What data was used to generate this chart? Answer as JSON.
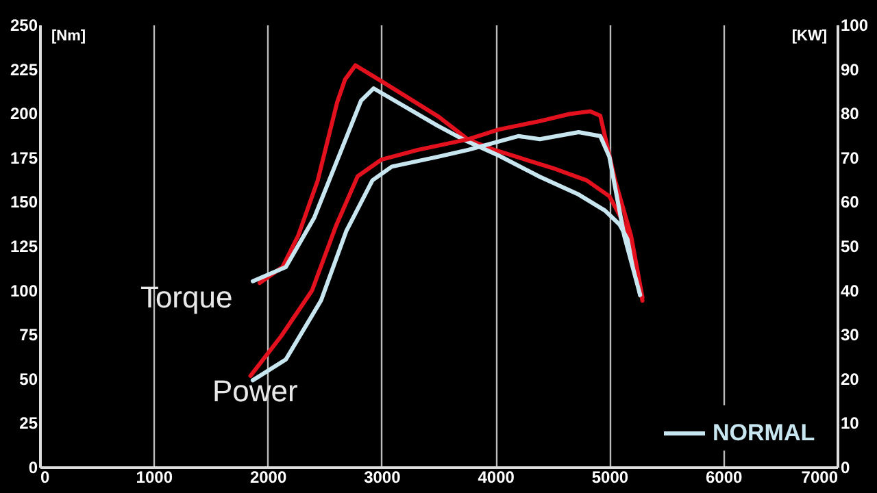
{
  "chart_data": {
    "type": "line",
    "xlabel": null,
    "ylabel": "[Nm]",
    "y2label": "[KW]",
    "xlim": [
      0,
      7000
    ],
    "xticks": [
      0,
      1000,
      2000,
      3000,
      4000,
      5000,
      6000,
      7000
    ],
    "ylim": [
      0,
      250
    ],
    "yticks": [
      0,
      25,
      50,
      75,
      100,
      125,
      150,
      175,
      200,
      225,
      250
    ],
    "y2lim": [
      0,
      100
    ],
    "y2ticks": [
      0,
      10,
      20,
      30,
      40,
      50,
      60,
      70,
      80,
      90,
      100
    ],
    "grid": "x",
    "legend": "bottom right",
    "marker": "none",
    "line_style": "solid",
    "annotations": [
      "Torque",
      "Power"
    ],
    "series": [
      {
        "color": "#e3101e",
        "x": [
          1930,
          2130,
          2270,
          2440,
          2610,
          2680,
          2770,
          3000,
          3500,
          3760,
          4000,
          4500,
          4800,
          5000,
          5100,
          5200,
          5290
        ],
        "values": [
          104,
          113,
          131,
          162,
          206,
          219,
          227,
          218,
          198,
          185,
          179,
          169,
          162,
          153,
          141,
          125,
          94
        ]
      },
      {
        "name": "NORMAL",
        "color": "#c8e6f0",
        "x": [
          1870,
          2160,
          2410,
          2640,
          2820,
          2930,
          3490,
          3720,
          4030,
          4390,
          4730,
          4960,
          5090,
          5190,
          5270
        ],
        "values": [
          105,
          113,
          141,
          178,
          207,
          214,
          193,
          185,
          176,
          164,
          154,
          145,
          137,
          125,
          97
        ]
      },
      {
        "axis": "y2",
        "color": "#e3101e",
        "x": [
          1850,
          2120,
          2390,
          2600,
          2790,
          3000,
          3320,
          3760,
          4030,
          4390,
          4650,
          4830,
          4920,
          5050,
          5190,
          5290
        ],
        "values": [
          20.6,
          29.6,
          39.9,
          54.5,
          65.7,
          69.5,
          71.7,
          74.1,
          76.3,
          78.2,
          79.8,
          80.4,
          79.4,
          64.8,
          52.3,
          38.3
        ]
      },
      {
        "axis": "y2",
        "color": "#c8e6f0",
        "x": [
          1870,
          2160,
          2470,
          2690,
          2920,
          3090,
          3490,
          3760,
          4200,
          4390,
          4730,
          4920,
          5000,
          5130,
          5270
        ],
        "values": [
          19.6,
          24.3,
          37.7,
          53.3,
          64.8,
          67.9,
          70.1,
          71.7,
          74.8,
          74.1,
          75.7,
          74.8,
          70.1,
          52.3,
          38.9
        ]
      }
    ]
  }
}
